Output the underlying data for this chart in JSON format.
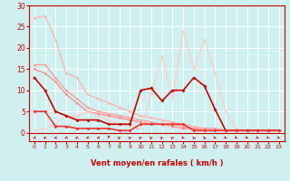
{
  "title": "",
  "xlabel": "Vent moyen/en rafales ( km/h )",
  "ylabel": "",
  "bg_color": "#cef0f0",
  "grid_color": "#ffffff",
  "xlim": [
    -0.5,
    23.5
  ],
  "ylim": [
    -2,
    30
  ],
  "yticks": [
    0,
    5,
    10,
    15,
    20,
    25,
    30
  ],
  "xticks": [
    0,
    1,
    2,
    3,
    4,
    5,
    6,
    7,
    8,
    9,
    10,
    11,
    12,
    13,
    14,
    15,
    16,
    17,
    18,
    19,
    20,
    21,
    22,
    23
  ],
  "lines": [
    {
      "x": [
        0,
        1,
        2,
        3,
        4,
        5,
        6,
        7,
        8,
        9,
        10,
        11,
        12,
        13,
        14,
        15,
        16,
        17,
        18,
        19,
        20,
        21,
        22,
        23
      ],
      "y": [
        27,
        27.5,
        22,
        14,
        13,
        9,
        8,
        7,
        6,
        5,
        4,
        3.5,
        3,
        2.5,
        2,
        1.5,
        1,
        1,
        0.5,
        0.5,
        0.5,
        0.5,
        0.5,
        0.5
      ],
      "color": "#ffb0b0",
      "marker": "o",
      "markersize": 1.8,
      "linewidth": 0.9
    },
    {
      "x": [
        0,
        1,
        2,
        3,
        4,
        5,
        6,
        7,
        8,
        9,
        10,
        11,
        12,
        13,
        14,
        15,
        16,
        17,
        18,
        19,
        20,
        21,
        22,
        23
      ],
      "y": [
        16,
        16,
        13,
        10,
        8,
        6,
        5,
        4.5,
        4,
        3.5,
        3,
        2.5,
        2,
        2,
        1.5,
        1,
        1,
        1,
        0.5,
        0.5,
        0.5,
        0.5,
        0.5,
        0.5
      ],
      "color": "#ff9999",
      "marker": "o",
      "markersize": 1.8,
      "linewidth": 0.9
    },
    {
      "x": [
        0,
        1,
        2,
        3,
        4,
        5,
        6,
        7,
        8,
        9,
        10,
        11,
        12,
        13,
        14,
        15,
        16,
        17,
        18,
        19,
        20,
        21,
        22,
        23
      ],
      "y": [
        15,
        14,
        12,
        9,
        7,
        5,
        4.5,
        4,
        3.5,
        3,
        2.5,
        2,
        2,
        1.5,
        1,
        1,
        0.5,
        0.5,
        0.5,
        0.5,
        0.5,
        0.5,
        0.5,
        0.5
      ],
      "color": "#ff8888",
      "marker": "o",
      "markersize": 1.8,
      "linewidth": 0.9
    },
    {
      "x": [
        0,
        1,
        2,
        3,
        4,
        5,
        6,
        7,
        8,
        9,
        10,
        11,
        12,
        13,
        14,
        15,
        16,
        17,
        18,
        19,
        20,
        21,
        22,
        23
      ],
      "y": [
        0.5,
        1,
        2,
        4,
        4,
        5,
        4,
        3,
        2,
        1.5,
        1,
        9,
        18,
        8,
        24,
        15,
        22,
        14,
        5,
        1,
        0.5,
        0.5,
        0.5,
        0.5
      ],
      "color": "#ffcccc",
      "marker": "o",
      "markersize": 1.8,
      "linewidth": 0.9
    },
    {
      "x": [
        0,
        1,
        2,
        3,
        4,
        5,
        6,
        7,
        8,
        9,
        10,
        11,
        12,
        13,
        14,
        15,
        16,
        17,
        18,
        19,
        20,
        21,
        22,
        23
      ],
      "y": [
        13,
        10,
        5,
        4,
        3,
        3,
        3,
        2,
        2,
        2,
        10,
        10.5,
        7.5,
        10,
        10,
        13,
        11,
        5.5,
        0.5,
        0.5,
        0.5,
        0.5,
        0.5,
        0.5
      ],
      "color": "#cc0000",
      "marker": "D",
      "markersize": 2.0,
      "linewidth": 1.2
    },
    {
      "x": [
        0,
        1,
        2,
        3,
        4,
        5,
        6,
        7,
        8,
        9,
        10,
        11,
        12,
        13,
        14,
        15,
        16,
        17,
        18,
        19,
        20,
        21,
        22,
        23
      ],
      "y": [
        5,
        5,
        1.5,
        1.5,
        1,
        1,
        1,
        1,
        0.5,
        0.5,
        2,
        2,
        2,
        2,
        2,
        0.5,
        0.5,
        0.5,
        0.5,
        0.5,
        0.5,
        0.5,
        0.5,
        0.5
      ],
      "color": "#ee3333",
      "marker": "D",
      "markersize": 2.0,
      "linewidth": 1.2
    }
  ],
  "arrow_angles_deg": [
    225,
    200,
    200,
    210,
    210,
    225,
    225,
    270,
    45,
    45,
    45,
    45,
    45,
    45,
    315,
    0,
    0,
    315,
    315,
    315,
    315,
    315,
    315,
    315
  ],
  "arrow_color": "#cc0000",
  "xlabel_color": "#cc0000",
  "tick_color": "#cc0000",
  "axis_color": "#cc0000"
}
